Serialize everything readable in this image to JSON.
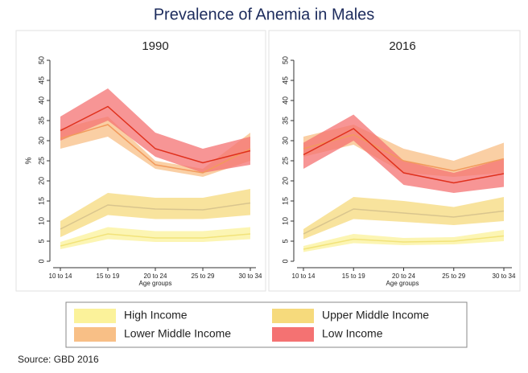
{
  "title": "Prevalence of Anemia in Males",
  "source": "Source: GBD 2016",
  "chart_data": [
    {
      "type": "line",
      "title": "1990",
      "ylabel": "%",
      "xlabel": "Age groups",
      "categories": [
        "10 to 14",
        "15 to 19",
        "20 to 24",
        "25 to 29",
        "30 to 34"
      ],
      "ylim": [
        0,
        50
      ],
      "yticks": [
        0,
        5,
        10,
        15,
        20,
        25,
        30,
        35,
        40,
        45,
        50
      ],
      "series": [
        {
          "name": "High Income",
          "color": "#fbf29a",
          "line_color": "#f2e37a",
          "values": [
            3.8,
            6.8,
            5.8,
            5.8,
            6.8
          ],
          "lower": [
            3,
            5.5,
            4.8,
            4.8,
            5.5
          ],
          "upper": [
            4.8,
            8.5,
            7.5,
            7.5,
            8.5
          ]
        },
        {
          "name": "Upper Middle Income",
          "color": "#f6da7c",
          "line_color": "#d9c58e",
          "values": [
            8,
            14,
            13,
            12.8,
            14.5
          ],
          "lower": [
            6,
            11.5,
            10.5,
            10.5,
            11.5
          ],
          "upper": [
            10,
            17,
            15.8,
            15.8,
            18
          ]
        },
        {
          "name": "Lower Middle Income",
          "color": "#f8bf86",
          "line_color": "#f29a5c",
          "values": [
            30.5,
            34,
            24,
            22,
            28
          ],
          "lower": [
            28,
            31,
            23,
            21,
            25
          ],
          "upper": [
            33,
            36,
            25,
            23,
            32
          ]
        },
        {
          "name": "Low Income",
          "color": "#f47272",
          "line_color": "#e0301c",
          "values": [
            32.5,
            38.5,
            28,
            24.5,
            27.5
          ],
          "lower": [
            30,
            35,
            26,
            22,
            24
          ],
          "upper": [
            36,
            43,
            32,
            28,
            31
          ]
        }
      ]
    },
    {
      "type": "line",
      "title": "2016",
      "xlabel": "Age groups",
      "categories": [
        "10 to 14",
        "15 to 19",
        "20 to 24",
        "25 to 29",
        "30 to 34"
      ],
      "ylim": [
        0,
        50
      ],
      "yticks": [
        0,
        5,
        10,
        15,
        20,
        25,
        30,
        35,
        40,
        45,
        50
      ],
      "series": [
        {
          "color": "#fbf29a",
          "line_color": "#f2e37a",
          "values": [
            3,
            5.5,
            4.8,
            5,
            6.3
          ],
          "lower": [
            2.3,
            4.5,
            4,
            4.2,
            5
          ],
          "upper": [
            3.8,
            6.8,
            5.8,
            6,
            7.8
          ]
        },
        {
          "color": "#f6da7c",
          "line_color": "#d9c58e",
          "values": [
            6.8,
            13,
            12,
            11,
            12.5
          ],
          "lower": [
            5.5,
            10.5,
            9.8,
            9,
            10
          ],
          "upper": [
            8,
            16,
            15,
            13.5,
            16
          ]
        },
        {
          "color": "#f8bf86",
          "line_color": "#f29a5c",
          "values": [
            28,
            31.5,
            25,
            22.5,
            25.5
          ],
          "lower": [
            26,
            29,
            22,
            21,
            22
          ],
          "upper": [
            31,
            34,
            28,
            25,
            29.5
          ]
        },
        {
          "color": "#f47272",
          "line_color": "#e0301c",
          "values": [
            26.5,
            33,
            22,
            19.5,
            21.8
          ],
          "lower": [
            23,
            30,
            19,
            17,
            18.5
          ],
          "upper": [
            29.5,
            36.5,
            25,
            22,
            25.5
          ]
        }
      ]
    }
  ]
}
